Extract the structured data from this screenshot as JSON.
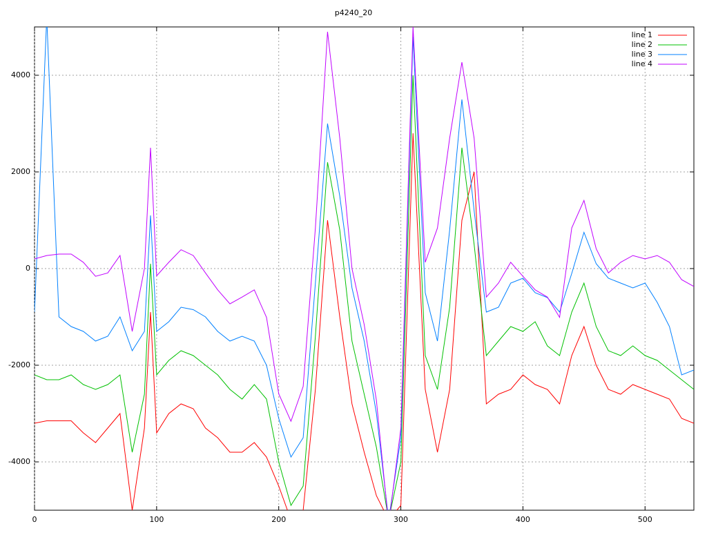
{
  "chart_data": {
    "type": "line",
    "title": "p4240_20",
    "x": [
      0,
      10,
      20,
      30,
      40,
      50,
      60,
      70,
      80,
      90,
      95,
      100,
      110,
      120,
      130,
      140,
      150,
      160,
      170,
      180,
      190,
      200,
      210,
      220,
      230,
      240,
      250,
      260,
      270,
      280,
      290,
      300,
      310,
      320,
      330,
      340,
      350,
      360,
      370,
      380,
      390,
      400,
      410,
      420,
      430,
      440,
      450,
      460,
      470,
      480,
      490,
      500,
      510,
      520,
      530,
      540
    ],
    "series": [
      {
        "name": "line 1",
        "color": "#ff0000",
        "values": [
          -3200,
          -3150,
          -3150,
          -3150,
          -3400,
          -3600,
          -3300,
          -3000,
          -5000,
          -3300,
          -900,
          -3400,
          -3000,
          -2800,
          -2900,
          -3300,
          -3500,
          -3800,
          -3800,
          -3600,
          -3900,
          -4500,
          -5200,
          -5000,
          -2500,
          1000,
          -1000,
          -2800,
          -3800,
          -4700,
          -5200,
          -4900,
          2800,
          -2500,
          -3800,
          -2500,
          1000,
          2000,
          -2800,
          -2600,
          -2500,
          -2200,
          -2400,
          -2500,
          -2800,
          -1800,
          -1200,
          -2000,
          -2500,
          -2600,
          -2400,
          -2500,
          -2600,
          -2700,
          -3100,
          -3200
        ]
      },
      {
        "name": "line 2",
        "color": "#00c000",
        "values": [
          -2200,
          -2300,
          -2300,
          -2200,
          -2400,
          -2500,
          -2400,
          -2200,
          -3800,
          -2600,
          100,
          -2200,
          -1900,
          -1700,
          -1800,
          -2000,
          -2200,
          -2500,
          -2700,
          -2400,
          -2700,
          -4000,
          -4900,
          -4500,
          -1400,
          2200,
          800,
          -1500,
          -2600,
          -3700,
          -5200,
          -4000,
          4000,
          -1800,
          -2500,
          -800,
          2500,
          500,
          -1800,
          -1500,
          -1200,
          -1300,
          -1100,
          -1600,
          -1800,
          -900,
          -300,
          -1200,
          -1700,
          -1800,
          -1600,
          -1800,
          -1900,
          -2100,
          -2300,
          -2500
        ]
      },
      {
        "name": "line 3",
        "color": "#0080ff",
        "values": [
          -900,
          5200,
          -1000,
          -1200,
          -1300,
          -1500,
          -1400,
          -1000,
          -1700,
          -1300,
          1100,
          -1300,
          -1100,
          -800,
          -850,
          -1000,
          -1300,
          -1500,
          -1400,
          -1500,
          -2000,
          -3100,
          -3900,
          -3500,
          -300,
          3000,
          1500,
          -400,
          -1500,
          -3000,
          -5200,
          -3500,
          4800,
          -500,
          -1500,
          800,
          3500,
          1200,
          -900,
          -800,
          -300,
          -200,
          -500,
          -600,
          -900,
          -100,
          750,
          100,
          -200,
          -300,
          -400,
          -300,
          -700,
          -1200,
          -2200,
          -2100
        ]
      },
      {
        "name": "line 4",
        "color": "#c000ff",
        "values": [
          200,
          270,
          300,
          300,
          130,
          -160,
          -90,
          270,
          -1300,
          0,
          2500,
          -150,
          130,
          390,
          270,
          -90,
          -440,
          -730,
          -590,
          -440,
          -1010,
          -2590,
          -3160,
          -2440,
          840,
          4900,
          2700,
          0,
          -1160,
          -2730,
          -5300,
          -3300,
          5000,
          130,
          840,
          2700,
          4270,
          2700,
          -590,
          -300,
          130,
          -160,
          -440,
          -590,
          -1010,
          840,
          1410,
          410,
          -90,
          130,
          270,
          200,
          270,
          130,
          -230,
          -370
        ]
      }
    ],
    "xlim": [
      0,
      540
    ],
    "xticks": [
      0,
      100,
      200,
      300,
      400,
      500
    ],
    "ylim": [
      -5000,
      5000
    ],
    "yticks": [
      -4000,
      -2000,
      0,
      2000,
      4000
    ],
    "grid": true,
    "legend": "upper right"
  }
}
